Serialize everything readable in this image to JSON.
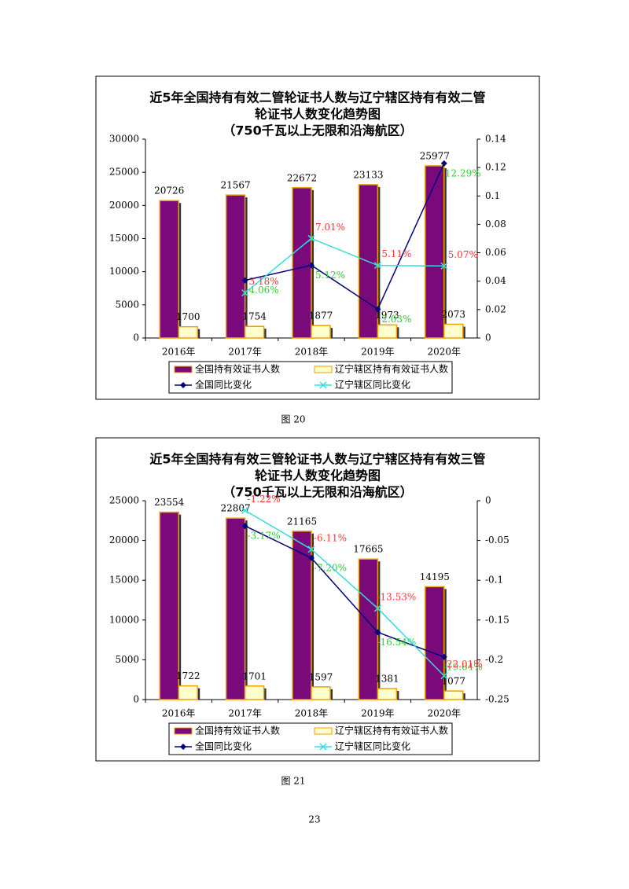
{
  "chart_data": [
    {
      "type": "bar-line",
      "title": [
        "近5年全国持有有效二管轮证书人数与辽宁辖区持有有效二管",
        "轮证书人数变化趋势图",
        "（750千瓦以上无限和沿海航区）"
      ],
      "categories": [
        "2016年",
        "2017年",
        "2018年",
        "2019年",
        "2020年"
      ],
      "ylim": [
        0,
        30000
      ],
      "yticks": [
        0,
        5000,
        10000,
        15000,
        20000,
        25000,
        30000
      ],
      "y2lim": [
        0,
        0.14
      ],
      "y2ticks": [
        0,
        0.02,
        0.04,
        0.06,
        0.08,
        0.1,
        0.12,
        0.14
      ],
      "series": [
        {
          "name": "全国持有效证书人数",
          "kind": "bar",
          "color": "#7a0a7a",
          "values": [
            20726,
            21567,
            22672,
            23133,
            25977
          ]
        },
        {
          "name": "辽宁辖区持有有效证书人数",
          "kind": "bar",
          "color": "#ffffcc",
          "values": [
            1700,
            1754,
            1877,
            1973,
            2073
          ]
        },
        {
          "name": "全国同比变化",
          "kind": "line",
          "axis": "y2",
          "color": "#000080",
          "label_color": "#33cc33",
          "values": [
            null,
            0.0406,
            0.0512,
            0.0203,
            0.1229
          ],
          "value_labels": [
            null,
            "4.06%",
            "5.12%",
            "2.03%",
            "12.29%"
          ]
        },
        {
          "name": "辽宁辖区同比变化",
          "kind": "line",
          "axis": "y2",
          "color": "#33dddd",
          "label_color": "#ff3333",
          "values": [
            null,
            0.0318,
            0.0701,
            0.0511,
            0.0507
          ],
          "value_labels": [
            null,
            "3.18%",
            "7.01%",
            "5.11%",
            "5.07%"
          ]
        }
      ],
      "caption": "图 20"
    },
    {
      "type": "bar-line",
      "title": [
        "近5年全国持有有效三管轮证书人数与辽宁辖区持有有效三管",
        "轮证书人数变化趋势图",
        "（750千瓦以上无限和沿海航区）"
      ],
      "categories": [
        "2016年",
        "2017年",
        "2018年",
        "2019年",
        "2020年"
      ],
      "ylim": [
        0,
        25000
      ],
      "yticks": [
        0,
        5000,
        10000,
        15000,
        20000,
        25000
      ],
      "y2lim": [
        -0.25,
        0
      ],
      "y2ticks": [
        -0.25,
        -0.2,
        -0.15,
        -0.1,
        -0.05,
        0
      ],
      "series": [
        {
          "name": "全国持有效证书人数",
          "kind": "bar",
          "color": "#7a0a7a",
          "values": [
            23554,
            22807,
            21165,
            17665,
            14195
          ]
        },
        {
          "name": "辽宁辖区持有有效证书人数",
          "kind": "bar",
          "color": "#ffffcc",
          "values": [
            1722,
            1701,
            1597,
            1381,
            1077
          ]
        },
        {
          "name": "全国同比变化",
          "kind": "line",
          "axis": "y2",
          "color": "#000080",
          "label_color": "#33cc33",
          "values": [
            null,
            -0.0317,
            -0.072,
            -0.1654,
            -0.1964
          ],
          "value_labels": [
            null,
            "-3.17%",
            "-7.20%",
            "-16.54%",
            "-19.64%"
          ]
        },
        {
          "name": "辽宁辖区同比变化",
          "kind": "line",
          "axis": "y2",
          "color": "#33dddd",
          "label_color": "#ff3333",
          "values": [
            null,
            -0.0122,
            -0.0611,
            -0.1353,
            -0.2201
          ],
          "value_labels": [
            null,
            "-1.22%",
            "-6.11%",
            "-13.53%",
            "-22.01%"
          ]
        }
      ],
      "caption": "图 21"
    }
  ],
  "page_number": "23"
}
